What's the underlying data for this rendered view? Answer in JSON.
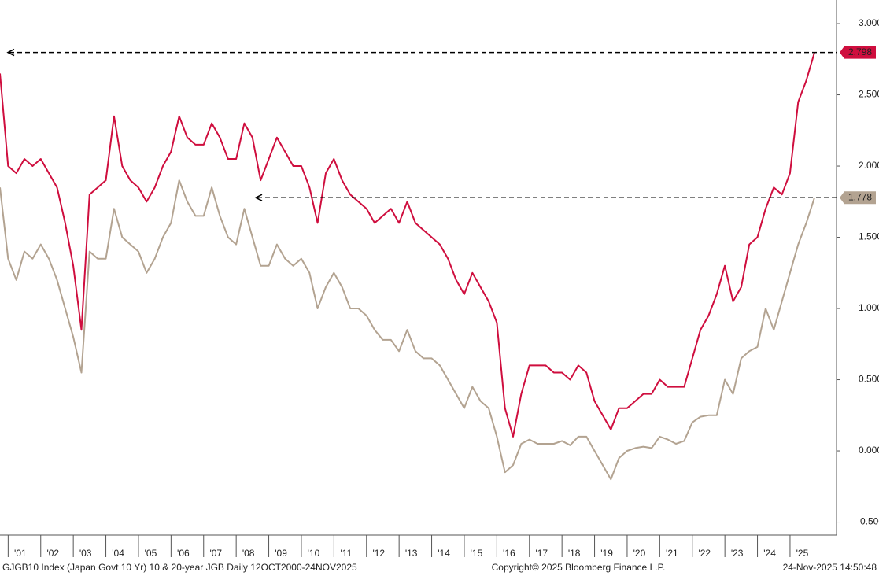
{
  "chart_data": {
    "type": "line",
    "footer_left": "GJGB10 Index (Japan Govt 10 Yr) 10 & 20-year JGB Daily 12OCT2000-24NOV2025",
    "footer_center": "Copyright© 2025 Bloomberg Finance L.P.",
    "footer_right": "24-Nov-2025 14:50:48",
    "categories": [
      null,
      null,
      "'01",
      null,
      null,
      null,
      "'02",
      null,
      null,
      null,
      "'03",
      null,
      null,
      null,
      "'04",
      null,
      null,
      null,
      "'05",
      null,
      null,
      null,
      "'06",
      null,
      null,
      null,
      "'07",
      null,
      null,
      null,
      "'08",
      null,
      null,
      null,
      "'09",
      null,
      null,
      null,
      "'10",
      null,
      null,
      null,
      "'11",
      null,
      null,
      null,
      "'12",
      null,
      null,
      null,
      "'13",
      null,
      null,
      null,
      "'14",
      null,
      null,
      null,
      "'15",
      null,
      null,
      null,
      "'16",
      null,
      null,
      null,
      "'17",
      null,
      null,
      null,
      "'18",
      null,
      null,
      null,
      "'19",
      null,
      null,
      null,
      "'20",
      null,
      null,
      null,
      "'21",
      null,
      null,
      null,
      "'22",
      null,
      null,
      null,
      "'23",
      null,
      null,
      null,
      "'24",
      null,
      null,
      null,
      "'25",
      null,
      null
    ],
    "series": [
      {
        "color": "#cf0e3e",
        "values": [
          2.65,
          2.0,
          1.95,
          2.05,
          2.0,
          2.05,
          1.95,
          1.85,
          1.6,
          1.3,
          0.85,
          1.8,
          1.85,
          1.9,
          2.35,
          2.0,
          1.9,
          1.85,
          1.75,
          1.85,
          2.0,
          2.1,
          2.35,
          2.2,
          2.15,
          2.15,
          2.3,
          2.2,
          2.05,
          2.05,
          2.3,
          2.2,
          1.9,
          2.05,
          2.2,
          2.1,
          2.0,
          2.0,
          1.85,
          1.6,
          1.95,
          2.05,
          1.9,
          1.8,
          1.75,
          1.7,
          1.6,
          1.65,
          1.7,
          1.6,
          1.75,
          1.6,
          1.55,
          1.5,
          1.45,
          1.35,
          1.2,
          1.1,
          1.25,
          1.15,
          1.05,
          0.9,
          0.3,
          0.1,
          0.4,
          0.6,
          0.6,
          0.6,
          0.55,
          0.55,
          0.5,
          0.6,
          0.55,
          0.35,
          0.25,
          0.15,
          0.3,
          0.3,
          0.35,
          0.4,
          0.4,
          0.5,
          0.45,
          0.45,
          0.45,
          0.65,
          0.85,
          0.95,
          1.1,
          1.3,
          1.05,
          1.15,
          1.45,
          1.5,
          1.7,
          1.85,
          1.8,
          1.95,
          2.45,
          2.6,
          2.798
        ]
      },
      {
        "color": "#b3a391",
        "values": [
          1.85,
          1.35,
          1.2,
          1.4,
          1.35,
          1.45,
          1.35,
          1.2,
          1.0,
          0.8,
          0.55,
          1.4,
          1.35,
          1.35,
          1.7,
          1.5,
          1.45,
          1.4,
          1.25,
          1.35,
          1.5,
          1.6,
          1.9,
          1.75,
          1.65,
          1.65,
          1.85,
          1.65,
          1.5,
          1.45,
          1.7,
          1.5,
          1.3,
          1.3,
          1.45,
          1.35,
          1.3,
          1.35,
          1.25,
          1.0,
          1.15,
          1.25,
          1.15,
          1.0,
          1.0,
          0.95,
          0.85,
          0.78,
          0.78,
          0.7,
          0.85,
          0.7,
          0.65,
          0.65,
          0.6,
          0.5,
          0.4,
          0.3,
          0.45,
          0.35,
          0.3,
          0.1,
          -0.15,
          -0.1,
          0.05,
          0.08,
          0.05,
          0.05,
          0.05,
          0.07,
          0.04,
          0.1,
          0.1,
          0.0,
          -0.1,
          -0.2,
          -0.05,
          0.0,
          0.02,
          0.03,
          0.02,
          0.1,
          0.08,
          0.05,
          0.07,
          0.2,
          0.24,
          0.25,
          0.25,
          0.5,
          0.4,
          0.65,
          0.7,
          0.73,
          1.0,
          0.85,
          1.05,
          1.25,
          1.45,
          1.6,
          1.778
        ]
      }
    ],
    "ylim": [
      -0.591,
      3.166
    ],
    "yticks": [
      {
        "value": 3,
        "label": "3.000"
      },
      {
        "value": 2.5,
        "label": "2.500"
      },
      {
        "value": 2,
        "label": "2.000"
      },
      {
        "value": 1.5,
        "label": "1.500"
      },
      {
        "value": 1,
        "label": "1.000"
      },
      {
        "value": 0.5,
        "label": "0.500"
      },
      {
        "value": 0,
        "label": "0.000"
      },
      {
        "value": -0.5,
        "label": "-0.500"
      }
    ],
    "grid": false
  }
}
